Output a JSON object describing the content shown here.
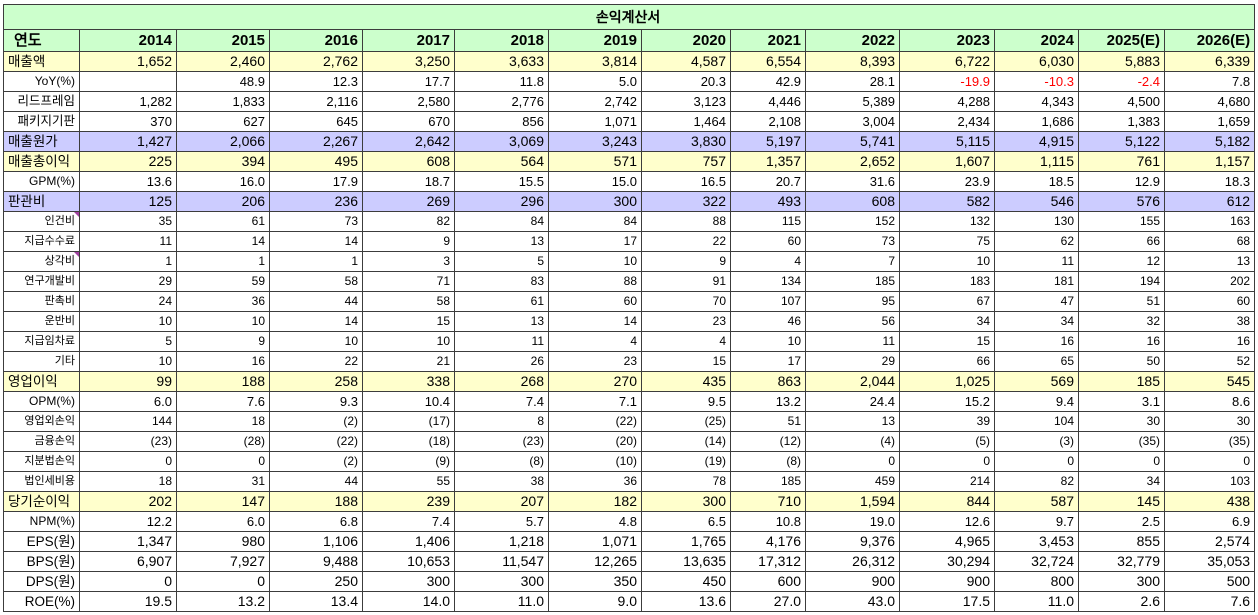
{
  "colors": {
    "title_bg": "#ccffcc",
    "header_bg": "#ccffcc",
    "negative": "#ff0000",
    "grid": "#3c3c3c",
    "comment_marker": "#a040a0"
  },
  "chart_data": {
    "type": "table",
    "title": "손익계산서",
    "row_header": "연도",
    "columns": [
      "2014",
      "2015",
      "2016",
      "2017",
      "2018",
      "2019",
      "2020",
      "2021",
      "2022",
      "2023",
      "2024",
      "2025(E)",
      "2026(E)"
    ],
    "rows": [
      {
        "label": "매출액",
        "fill": "#ffffcc",
        "values": [
          "1,652",
          "2,460",
          "2,762",
          "3,250",
          "3,633",
          "3,814",
          "4,587",
          "6,554",
          "8,393",
          "6,722",
          "6,030",
          "5,883",
          "6,339"
        ]
      },
      {
        "label": "YoY(%)",
        "values": [
          "",
          "48.9",
          "12.3",
          "17.7",
          "11.8",
          "5.0",
          "20.3",
          "42.9",
          "28.1",
          "-19.9",
          "-10.3",
          "-2.4",
          "7.8"
        ]
      },
      {
        "label": "리드프레임",
        "values": [
          "1,282",
          "1,833",
          "2,116",
          "2,580",
          "2,776",
          "2,742",
          "3,123",
          "4,446",
          "5,389",
          "4,288",
          "4,343",
          "4,500",
          "4,680"
        ]
      },
      {
        "label": "패키지기판",
        "values": [
          "370",
          "627",
          "645",
          "670",
          "856",
          "1,071",
          "1,464",
          "2,108",
          "3,004",
          "2,434",
          "1,686",
          "1,383",
          "1,659"
        ]
      },
      {
        "label": "매출원가",
        "fill": "#ccccff",
        "values": [
          "1,427",
          "2,066",
          "2,267",
          "2,642",
          "3,069",
          "3,243",
          "3,830",
          "5,197",
          "5,741",
          "5,115",
          "4,915",
          "5,122",
          "5,182"
        ]
      },
      {
        "label": "매출총이익",
        "fill": "#ffffcc",
        "values": [
          "225",
          "394",
          "495",
          "608",
          "564",
          "571",
          "757",
          "1,357",
          "2,652",
          "1,607",
          "1,115",
          "761",
          "1,157"
        ]
      },
      {
        "label": "GPM(%)",
        "values": [
          "13.6",
          "16.0",
          "17.9",
          "18.7",
          "15.5",
          "15.0",
          "16.5",
          "20.7",
          "31.6",
          "23.9",
          "18.5",
          "12.9",
          "18.3"
        ]
      },
      {
        "label": "판관비",
        "fill": "#ccccff",
        "values": [
          "125",
          "206",
          "236",
          "269",
          "296",
          "300",
          "322",
          "493",
          "608",
          "582",
          "546",
          "576",
          "612"
        ]
      },
      {
        "label": "인건비",
        "values": [
          "35",
          "61",
          "73",
          "82",
          "84",
          "84",
          "88",
          "115",
          "152",
          "132",
          "130",
          "155",
          "163"
        ]
      },
      {
        "label": "지급수수료",
        "values": [
          "11",
          "14",
          "14",
          "9",
          "13",
          "17",
          "22",
          "60",
          "73",
          "75",
          "62",
          "66",
          "68"
        ]
      },
      {
        "label": "상각비",
        "values": [
          "1",
          "1",
          "1",
          "3",
          "5",
          "10",
          "9",
          "4",
          "7",
          "10",
          "11",
          "12",
          "13"
        ]
      },
      {
        "label": "연구개발비",
        "values": [
          "29",
          "59",
          "58",
          "71",
          "83",
          "88",
          "91",
          "134",
          "185",
          "183",
          "181",
          "194",
          "202"
        ]
      },
      {
        "label": "판촉비",
        "values": [
          "24",
          "36",
          "44",
          "58",
          "61",
          "60",
          "70",
          "107",
          "95",
          "67",
          "47",
          "51",
          "60"
        ]
      },
      {
        "label": "운반비",
        "values": [
          "10",
          "10",
          "14",
          "15",
          "13",
          "14",
          "23",
          "46",
          "56",
          "34",
          "34",
          "32",
          "38"
        ]
      },
      {
        "label": "지급임차료",
        "values": [
          "5",
          "9",
          "10",
          "10",
          "11",
          "4",
          "4",
          "10",
          "11",
          "15",
          "16",
          "16",
          "16"
        ]
      },
      {
        "label": "기타",
        "values": [
          "10",
          "16",
          "22",
          "21",
          "26",
          "23",
          "15",
          "17",
          "29",
          "66",
          "65",
          "50",
          "52"
        ]
      },
      {
        "label": "영업이익",
        "fill": "#ffffcc",
        "values": [
          "99",
          "188",
          "258",
          "338",
          "268",
          "270",
          "435",
          "863",
          "2,044",
          "1,025",
          "569",
          "185",
          "545"
        ]
      },
      {
        "label": "OPM(%)",
        "values": [
          "6.0",
          "7.6",
          "9.3",
          "10.4",
          "7.4",
          "7.1",
          "9.5",
          "13.2",
          "24.4",
          "15.2",
          "9.4",
          "3.1",
          "8.6"
        ]
      },
      {
        "label": "영업외손익",
        "values": [
          "144",
          "18",
          "(2)",
          "(17)",
          "8",
          "(22)",
          "(25)",
          "51",
          "13",
          "39",
          "104",
          "30",
          "30"
        ]
      },
      {
        "label": "금융손익",
        "values": [
          "(23)",
          "(28)",
          "(22)",
          "(18)",
          "(23)",
          "(20)",
          "(14)",
          "(12)",
          "(4)",
          "(5)",
          "(3)",
          "(35)",
          "(35)"
        ]
      },
      {
        "label": "지분법손익",
        "values": [
          "0",
          "0",
          "(2)",
          "(9)",
          "(8)",
          "(10)",
          "(19)",
          "(8)",
          "0",
          "0",
          "0",
          "0",
          "0"
        ]
      },
      {
        "label": "법인세비용",
        "values": [
          "18",
          "31",
          "44",
          "55",
          "38",
          "36",
          "78",
          "185",
          "459",
          "214",
          "82",
          "34",
          "103"
        ]
      },
      {
        "label": "당기순이익",
        "fill": "#ffffcc",
        "values": [
          "202",
          "147",
          "188",
          "239",
          "207",
          "182",
          "300",
          "710",
          "1,594",
          "844",
          "587",
          "145",
          "438"
        ]
      },
      {
        "label": "NPM(%)",
        "values": [
          "12.2",
          "6.0",
          "6.8",
          "7.4",
          "5.7",
          "4.8",
          "6.5",
          "10.8",
          "19.0",
          "12.6",
          "9.7",
          "2.5",
          "6.9"
        ]
      },
      {
        "label": "EPS(원)",
        "values": [
          "1,347",
          "980",
          "1,106",
          "1,406",
          "1,218",
          "1,071",
          "1,765",
          "4,176",
          "9,376",
          "4,965",
          "3,453",
          "855",
          "2,574"
        ]
      },
      {
        "label": "BPS(원)",
        "values": [
          "6,907",
          "7,927",
          "9,488",
          "10,653",
          "11,547",
          "12,265",
          "13,635",
          "17,312",
          "26,312",
          "30,294",
          "32,724",
          "32,779",
          "35,053"
        ]
      },
      {
        "label": "DPS(원)",
        "values": [
          "0",
          "0",
          "250",
          "300",
          "300",
          "350",
          "450",
          "600",
          "900",
          "900",
          "800",
          "300",
          "500"
        ]
      },
      {
        "label": "ROE(%)",
        "values": [
          "19.5",
          "13.2",
          "13.4",
          "14.0",
          "11.0",
          "9.0",
          "13.6",
          "27.0",
          "43.0",
          "17.5",
          "11.0",
          "2.6",
          "7.6"
        ]
      }
    ]
  }
}
